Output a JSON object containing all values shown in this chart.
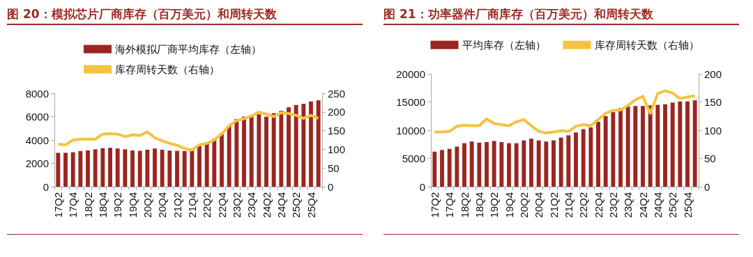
{
  "chart_data": [
    {
      "type": "bar",
      "title": "图 20：模拟芯片厂商库存（百万美元）和周转天数",
      "categories": [
        "17Q2",
        null,
        "17Q4",
        null,
        "18Q2",
        null,
        "18Q4",
        null,
        "19Q2",
        null,
        "19Q4",
        null,
        "20Q2",
        null,
        "20Q4",
        null,
        "21Q2",
        null,
        "21Q4",
        null,
        "22Q2",
        null,
        "22Q4",
        null,
        "23Q2",
        null,
        "23Q4",
        null,
        "24Q2",
        null,
        "24Q4",
        null,
        "25Q2",
        null,
        "25Q4",
        null
      ],
      "series": [
        {
          "name": "海外模拟厂商平均库存（左轴）",
          "color": "#9b2520",
          "values": [
            2900,
            2900,
            2950,
            3050,
            3100,
            3200,
            3300,
            3330,
            3270,
            3200,
            3100,
            3070,
            3170,
            3270,
            3170,
            3090,
            3070,
            3050,
            3100,
            3500,
            3700,
            4100,
            4600,
            5200,
            5800,
            6000,
            6000,
            6200,
            6000,
            6300,
            6500,
            6800,
            7000,
            7100,
            7300,
            7400
          ]
        },
        {
          "name": "库存周转天数（右轴）",
          "type": "line",
          "axis": "y2",
          "color": "#f5c242",
          "values": [
            114,
            112,
            125,
            127,
            128,
            127,
            141,
            142,
            141,
            134,
            139,
            137,
            147,
            131,
            123,
            116,
            111,
            102,
            98,
            112,
            116,
            125,
            141,
            163,
            177,
            182,
            189,
            200,
            194,
            188,
            198,
            196,
            191,
            183,
            191,
            183
          ]
        }
      ],
      "ylim": [
        0,
        8000
      ],
      "yticks": [
        0,
        2000,
        4000,
        6000,
        8000
      ],
      "y2lim": [
        0,
        250
      ],
      "y2ticks": [
        0,
        50,
        100,
        150,
        200,
        250
      ],
      "legend": "top",
      "marker": "none",
      "grid": false
    },
    {
      "type": "bar",
      "title": "图 21：功率器件厂商库存（百万美元）和周转天数",
      "categories": [
        "17Q2",
        null,
        "17Q4",
        null,
        "18Q2",
        null,
        "18Q4",
        null,
        "19Q2",
        null,
        "19Q4",
        null,
        "20Q2",
        null,
        "20Q4",
        null,
        "21Q2",
        null,
        "21Q4",
        null,
        "22Q2",
        null,
        "22Q4",
        null,
        "23Q2",
        null,
        "23Q4",
        null,
        "24Q2",
        null,
        "24Q4",
        null,
        "25Q2",
        null,
        "25Q4",
        null
      ],
      "series": [
        {
          "name": "平均库存（左轴）",
          "color": "#9b2520",
          "values": [
            6200,
            6500,
            6700,
            7100,
            7700,
            8000,
            7800,
            7900,
            8100,
            7900,
            7700,
            7700,
            8200,
            8500,
            8200,
            8000,
            8200,
            8700,
            9100,
            9600,
            10200,
            10500,
            11500,
            12500,
            13200,
            13900,
            14200,
            14300,
            14300,
            14400,
            14500,
            14600,
            14900,
            15100,
            15100,
            15300
          ]
        },
        {
          "name": "库存周转天数（右轴）",
          "type": "line",
          "axis": "y2",
          "color": "#f5c242",
          "values": [
            97,
            97,
            98,
            107,
            109,
            108,
            108,
            120,
            112,
            110,
            108,
            115,
            119,
            108,
            98,
            95,
            97,
            99,
            98,
            107,
            110,
            108,
            119,
            130,
            135,
            136,
            144,
            154,
            160,
            130,
            165,
            170,
            166,
            156,
            159,
            161
          ]
        }
      ],
      "ylim": [
        0,
        20000
      ],
      "yticks": [
        0,
        5000,
        10000,
        15000,
        20000
      ],
      "y2lim": [
        0,
        200
      ],
      "y2ticks": [
        0,
        50,
        100,
        150,
        200
      ],
      "legend": "top",
      "marker": "none",
      "grid": false
    }
  ]
}
